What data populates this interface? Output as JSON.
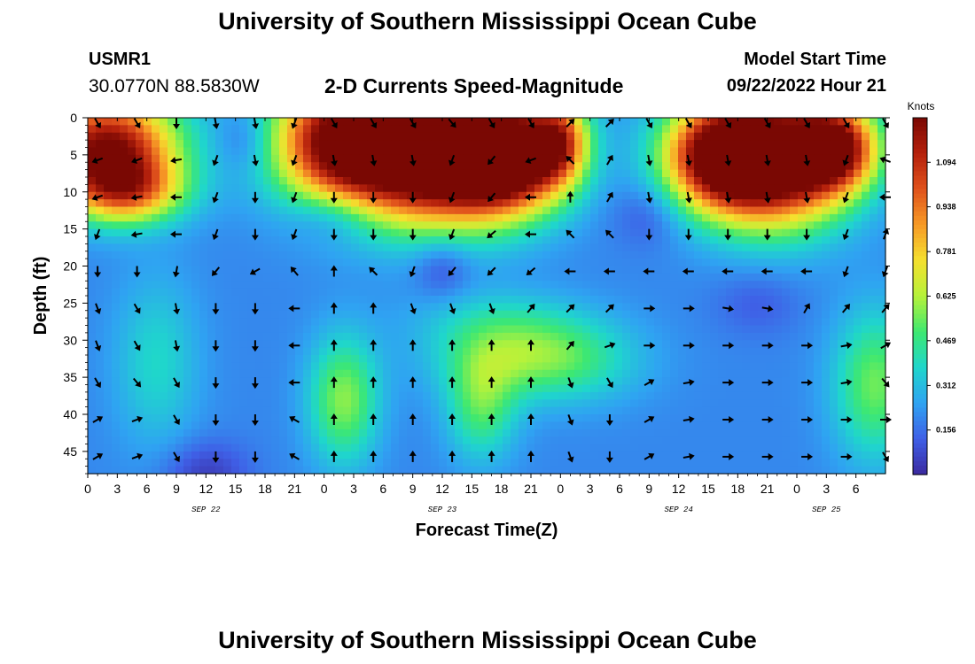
{
  "header": {
    "title": "University of Southern Mississippi Ocean Cube",
    "station_id": "USMR1",
    "coordinates": "30.0770N  88.5830W",
    "subtitle": "2-D Currents Speed-Magnitude",
    "start_label": "Model Start Time",
    "start_value": "09/22/2022 Hour 21"
  },
  "footer": {
    "title": "University of Southern Mississippi Ocean Cube"
  },
  "colors": {
    "colormap": [
      "#3b2aa0",
      "#3f5fe6",
      "#2fa3f2",
      "#1fd6cc",
      "#3ee870",
      "#b6f23a",
      "#f5e02e",
      "#f79a26",
      "#e0521c",
      "#b5210c",
      "#7a0803"
    ]
  },
  "chart_data": {
    "type": "heatmap",
    "title": "2-D Currents Speed-Magnitude",
    "xlabel": "Forecast Time(Z)",
    "ylabel": "Depth (ft)",
    "x_ticks": [
      "0",
      "3",
      "6",
      "9",
      "12",
      "15",
      "18",
      "21",
      "0",
      "3",
      "6",
      "9",
      "12",
      "15",
      "18",
      "21",
      "0",
      "3",
      "6",
      "9",
      "12",
      "15",
      "18",
      "21",
      "0",
      "3",
      "6"
    ],
    "x_range_hours": [
      0,
      81
    ],
    "date_labels": [
      {
        "label": "SEP 22",
        "hour": 12
      },
      {
        "label": "SEP 23",
        "hour": 36
      },
      {
        "label": "SEP 24",
        "hour": 60
      },
      {
        "label": "SEP 25",
        "hour": 75
      }
    ],
    "y_ticks": [
      "0",
      "5",
      "10",
      "15",
      "20",
      "25",
      "30",
      "35",
      "40",
      "45"
    ],
    "y_range_ft": [
      0,
      48
    ],
    "colorbar": {
      "unit": "Knots",
      "min": 0,
      "max": 1.25,
      "ticks": [
        "0.156",
        "0.312",
        "0.469",
        "0.625",
        "0.781",
        "0.938",
        "1.094"
      ]
    },
    "speed_blobs_knots": [
      {
        "hour": 2,
        "depth": 4,
        "sx": 5,
        "sy": 5,
        "amp": 1.05
      },
      {
        "hour": 4,
        "depth": 10,
        "sx": 4,
        "sy": 3,
        "amp": 0.55
      },
      {
        "hour": 16,
        "depth": 3,
        "sx": 2,
        "sy": 3,
        "amp": -0.12
      },
      {
        "hour": 26,
        "depth": 3,
        "sx": 5,
        "sy": 6,
        "amp": 1.1
      },
      {
        "hour": 36,
        "depth": 6,
        "sx": 6,
        "sy": 6,
        "amp": 1.2
      },
      {
        "hour": 43,
        "depth": 5,
        "sx": 4,
        "sy": 5,
        "amp": 1.0
      },
      {
        "hour": 48,
        "depth": 3,
        "sx": 2,
        "sy": 4,
        "amp": 0.55
      },
      {
        "hour": 70,
        "depth": 6,
        "sx": 5,
        "sy": 6,
        "amp": 1.15
      },
      {
        "hour": 64,
        "depth": 5,
        "sx": 4,
        "sy": 5,
        "amp": 0.95
      },
      {
        "hour": 76,
        "depth": 4,
        "sx": 3,
        "sy": 4,
        "amp": 0.85
      },
      {
        "hour": 25,
        "depth": 13,
        "sx": 3,
        "sy": 2.5,
        "amp": -0.15
      },
      {
        "hour": 36,
        "depth": 20,
        "sx": 2,
        "sy": 3,
        "amp": -0.13
      },
      {
        "hour": 57,
        "depth": 13,
        "sx": 2.5,
        "sy": 3,
        "amp": -0.1
      },
      {
        "hour": 68,
        "depth": 25,
        "sx": 3,
        "sy": 3,
        "amp": -0.08
      },
      {
        "hour": 12,
        "depth": 48,
        "sx": 3,
        "sy": 3,
        "amp": -0.15
      },
      {
        "hour": 7,
        "depth": 33,
        "sx": 3,
        "sy": 8,
        "amp": 0.18
      },
      {
        "hour": 26,
        "depth": 38,
        "sx": 2.5,
        "sy": 6,
        "amp": 0.38
      },
      {
        "hour": 40,
        "depth": 39,
        "sx": 2.5,
        "sy": 5,
        "amp": 0.3
      },
      {
        "hour": 44,
        "depth": 32,
        "sx": 6,
        "sy": 4,
        "amp": 0.32
      },
      {
        "hour": 41,
        "depth": 27,
        "sx": 6,
        "sy": 3,
        "amp": 0.1
      },
      {
        "hour": 80,
        "depth": 36,
        "sx": 3,
        "sy": 7,
        "amp": 0.35
      },
      {
        "hour": 50,
        "depth": 33,
        "sx": 5,
        "sy": 4,
        "amp": 0.12
      }
    ],
    "base_speed_knots": 0.2,
    "arrow_hours": [
      1,
      5,
      9,
      13,
      17,
      21,
      25,
      29,
      33,
      37,
      41,
      45,
      49,
      53,
      57,
      61,
      65,
      69,
      73,
      77,
      81
    ],
    "arrow_depths_ft": [
      0,
      5,
      10,
      15,
      20,
      25,
      30,
      35,
      40,
      45
    ],
    "arrow_direction_deg": [
      [
        150,
        150,
        180,
        170,
        170,
        200,
        150,
        150,
        150,
        140,
        150,
        150,
        45,
        45,
        150,
        150,
        150,
        150,
        150,
        150,
        150
      ],
      [
        250,
        250,
        260,
        200,
        170,
        200,
        170,
        170,
        170,
        200,
        220,
        250,
        315,
        30,
        170,
        170,
        170,
        170,
        170,
        200,
        290
      ],
      [
        250,
        260,
        270,
        200,
        180,
        200,
        180,
        180,
        180,
        200,
        220,
        270,
        0,
        30,
        170,
        170,
        170,
        170,
        170,
        200,
        270
      ],
      [
        200,
        260,
        270,
        200,
        180,
        200,
        180,
        180,
        180,
        200,
        230,
        270,
        315,
        315,
        180,
        180,
        180,
        180,
        180,
        200,
        20
      ],
      [
        180,
        180,
        190,
        220,
        240,
        320,
        0,
        315,
        200,
        220,
        225,
        230,
        270,
        270,
        270,
        270,
        270,
        270,
        270,
        200,
        200
      ],
      [
        160,
        150,
        170,
        180,
        180,
        270,
        0,
        0,
        160,
        160,
        160,
        40,
        45,
        45,
        90,
        90,
        100,
        100,
        30,
        40,
        40
      ],
      [
        160,
        150,
        170,
        180,
        180,
        270,
        0,
        0,
        0,
        0,
        0,
        0,
        40,
        70,
        90,
        90,
        90,
        90,
        90,
        80,
        60
      ],
      [
        150,
        140,
        150,
        180,
        180,
        270,
        0,
        0,
        0,
        0,
        0,
        0,
        160,
        150,
        60,
        80,
        90,
        90,
        90,
        80,
        140
      ],
      [
        60,
        70,
        150,
        180,
        180,
        300,
        0,
        0,
        0,
        0,
        0,
        0,
        160,
        180,
        60,
        80,
        90,
        90,
        90,
        90,
        90
      ],
      [
        60,
        70,
        150,
        180,
        180,
        300,
        0,
        0,
        0,
        0,
        0,
        0,
        160,
        180,
        60,
        80,
        90,
        90,
        90,
        90,
        150
      ]
    ]
  }
}
